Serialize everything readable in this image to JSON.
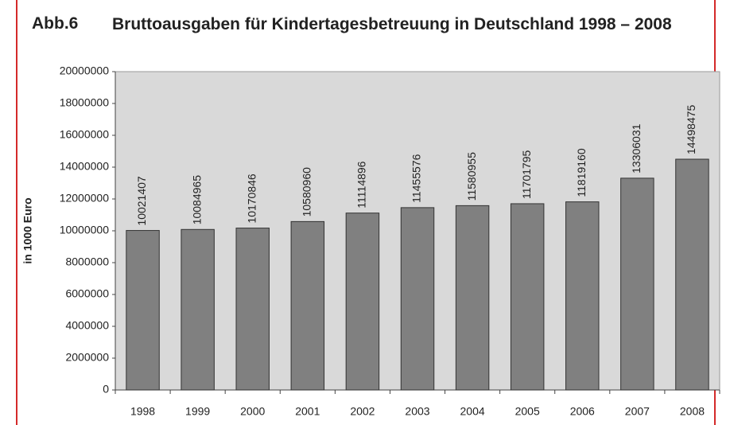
{
  "chart_data": {
    "type": "bar",
    "figure_label": "Abb.6",
    "title": "Bruttoausgaben für Kindertagesbetreuung in Deutschland 1998 – 2008",
    "y_label": "in 1000 Euro",
    "categories": [
      "1998",
      "1999",
      "2000",
      "2001",
      "2002",
      "2003",
      "2004",
      "2005",
      "2006",
      "2007",
      "2008"
    ],
    "values": [
      10021407,
      10084965,
      10170846,
      10580960,
      11114896,
      11455576,
      11580955,
      11701795,
      11819160,
      13306031,
      14498475
    ],
    "color": "#808080",
    "ylim": [
      0,
      20000000
    ],
    "yticks": [
      0,
      2000000,
      4000000,
      6000000,
      8000000,
      10000000,
      12000000,
      14000000,
      16000000,
      18000000,
      20000000
    ],
    "grid": false
  }
}
